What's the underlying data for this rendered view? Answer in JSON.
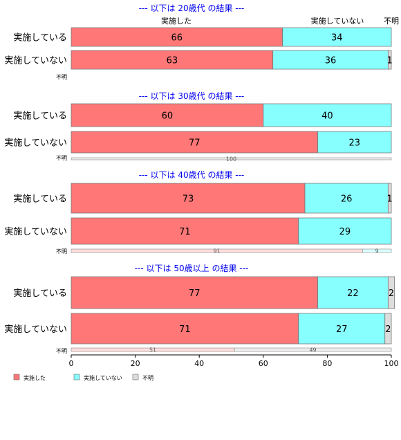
{
  "chart_data": {
    "type": "bar",
    "orientation": "horizontal",
    "stacked": true,
    "xlim": [
      0,
      100
    ],
    "x_ticks": [
      0,
      20,
      40,
      60,
      80,
      100
    ],
    "segment_names": [
      "実施した",
      "実施していない",
      "不明"
    ],
    "colors": {
      "done": "#ff7777",
      "not_done": "#88ffff",
      "unknown": "#dddddd"
    },
    "column_headers": [
      "実施した",
      "実施していない",
      "不明"
    ],
    "panels": [
      {
        "title": "--- 以下は 20歳代 の結果 ---",
        "rows": [
          {
            "label": "実施している",
            "values": [
              66,
              34,
              0
            ],
            "value_labels": [
              "66",
              "34",
              ""
            ]
          },
          {
            "label": "実施していない",
            "values": [
              63,
              36,
              1
            ],
            "value_labels": [
              "63",
              "36",
              "1"
            ]
          }
        ],
        "unknown_row": {
          "label": "不明",
          "values": [
            0,
            0,
            0
          ],
          "value_labels": [
            "",
            "",
            ""
          ]
        }
      },
      {
        "title": "--- 以下は 30歳代 の結果 ---",
        "rows": [
          {
            "label": "実施している",
            "values": [
              60,
              40,
              0
            ],
            "value_labels": [
              "60",
              "40",
              ""
            ]
          },
          {
            "label": "実施していない",
            "values": [
              77,
              23,
              0
            ],
            "value_labels": [
              "77",
              "23",
              ""
            ]
          }
        ],
        "unknown_row": {
          "label": "不明",
          "values": [
            0,
            0,
            100
          ],
          "value_labels": [
            "",
            "",
            "100"
          ]
        }
      },
      {
        "title": "--- 以下は 40歳代 の結果 ---",
        "rows": [
          {
            "label": "実施している",
            "values": [
              73,
              26,
              1
            ],
            "value_labels": [
              "73",
              "26",
              "1"
            ]
          },
          {
            "label": "実施していない",
            "values": [
              71,
              29,
              0
            ],
            "value_labels": [
              "71",
              "29",
              ""
            ]
          }
        ],
        "unknown_row": {
          "label": "不明",
          "values": [
            91,
            9,
            0
          ],
          "value_labels": [
            "91",
            "9",
            ""
          ]
        }
      },
      {
        "title": "--- 以下は 50歳以上 の結果 ---",
        "rows": [
          {
            "label": "実施している",
            "values": [
              77,
              22,
              2
            ],
            "value_labels": [
              "77",
              "22",
              "2"
            ]
          },
          {
            "label": "実施していない",
            "values": [
              71,
              27,
              2
            ],
            "value_labels": [
              "71",
              "27",
              "2"
            ]
          }
        ],
        "unknown_row": {
          "label": "不明",
          "values": [
            51,
            0,
            49
          ],
          "value_labels": [
            "51",
            "",
            "49"
          ]
        }
      }
    ],
    "legend": {
      "position": "bottom-left",
      "entries": [
        "実施した",
        "実施していない",
        "不明"
      ]
    }
  }
}
